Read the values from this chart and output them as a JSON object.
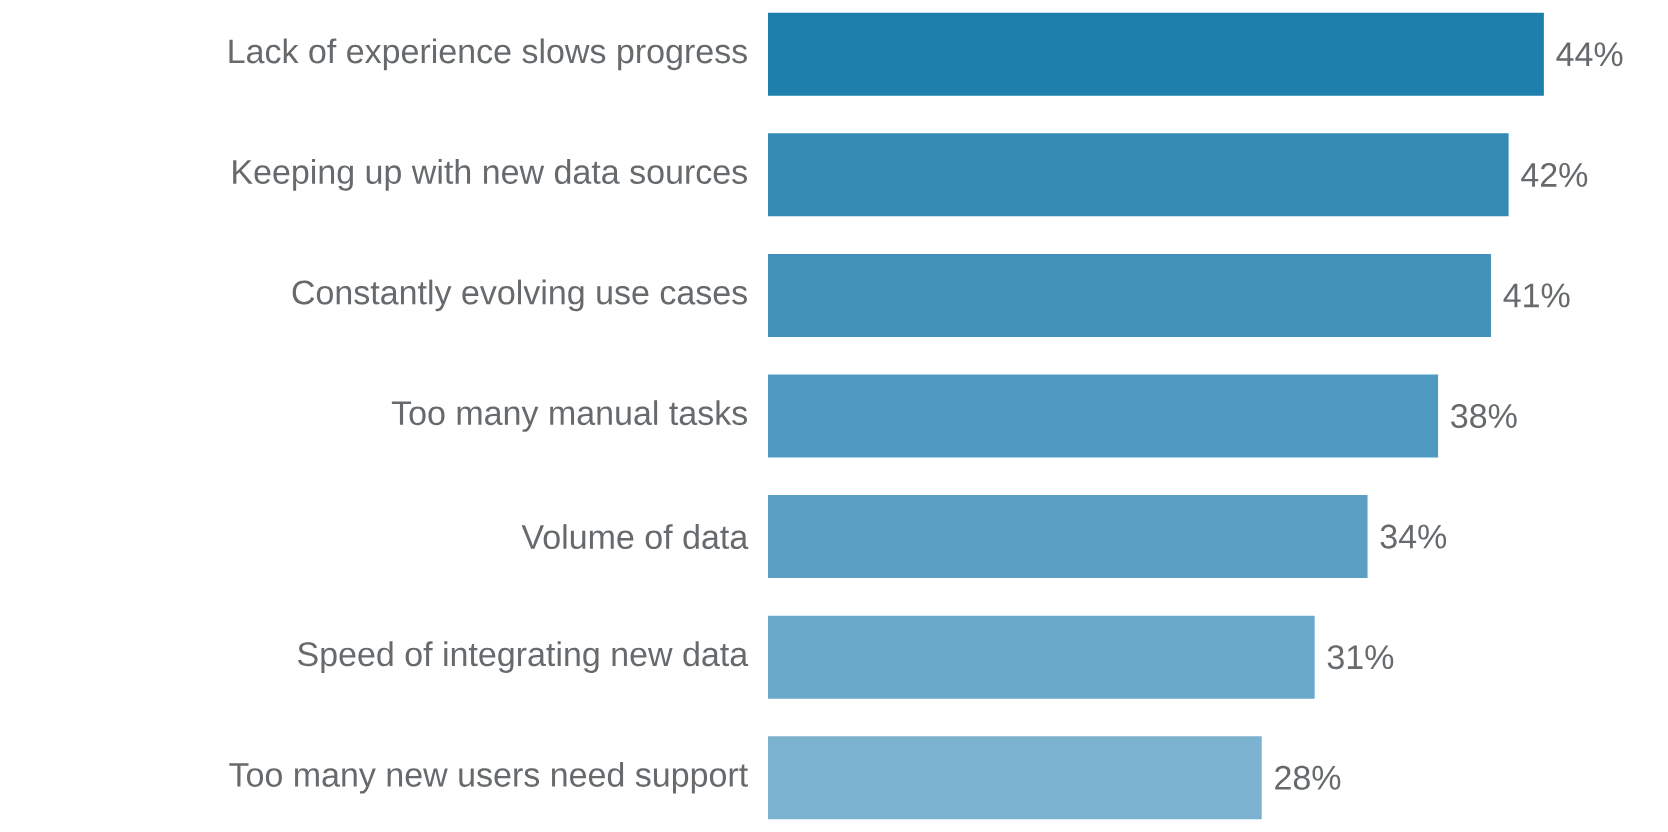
{
  "chart_data": {
    "type": "bar",
    "orientation": "horizontal",
    "categories": [
      "Lack of experience slows progress",
      "Keeping up with new data sources",
      "Constantly evolving use cases",
      "Too many manual tasks",
      "Volume of data",
      "Speed of integrating new data",
      "Too many new users need support"
    ],
    "values": [
      44,
      42,
      41,
      38,
      34,
      31,
      28
    ],
    "value_labels": [
      "44%",
      "42%",
      "41%",
      "38%",
      "34%",
      "31%",
      "28%"
    ],
    "colors": [
      "#1e7fac",
      "#338bb4",
      "#4291b8",
      "#4e9ac2",
      "#5ba0c4",
      "#6ba9ca",
      "#7bb2cf"
    ]
  }
}
